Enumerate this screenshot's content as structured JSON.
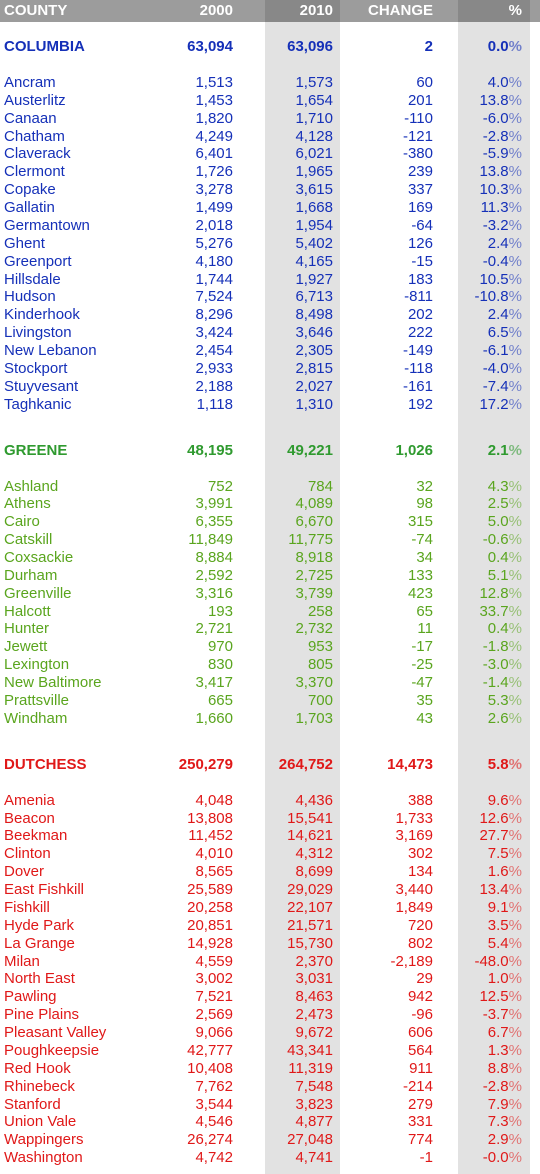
{
  "header": [
    "COUNTY",
    "2000",
    "2010",
    "CHANGE",
    "%"
  ],
  "sections": [
    {
      "color": "#1530b8",
      "total": [
        "COLUMBIA",
        "63,094",
        "63,096",
        "2",
        "0.0%"
      ],
      "rows": [
        [
          "Ancram",
          "1,513",
          "1,573",
          "60",
          "4.0%"
        ],
        [
          "Austerlitz",
          "1,453",
          "1,654",
          "201",
          "13.8%"
        ],
        [
          "Canaan",
          "1,820",
          "1,710",
          "-110",
          "-6.0%"
        ],
        [
          "Chatham",
          "4,249",
          "4,128",
          "-121",
          "-2.8%"
        ],
        [
          "Claverack",
          "6,401",
          "6,021",
          "-380",
          "-5.9%"
        ],
        [
          "Clermont",
          "1,726",
          "1,965",
          "239",
          "13.8%"
        ],
        [
          "Copake",
          "3,278",
          "3,615",
          "337",
          "10.3%"
        ],
        [
          "Gallatin",
          "1,499",
          "1,668",
          "169",
          "11.3%"
        ],
        [
          "Germantown",
          "2,018",
          "1,954",
          "-64",
          "-3.2%"
        ],
        [
          "Ghent",
          "5,276",
          "5,402",
          "126",
          "2.4%"
        ],
        [
          "Greenport",
          "4,180",
          "4,165",
          "-15",
          "-0.4%"
        ],
        [
          "Hillsdale",
          "1,744",
          "1,927",
          "183",
          "10.5%"
        ],
        [
          "Hudson",
          "7,524",
          "6,713",
          "-811",
          "-10.8%"
        ],
        [
          "Kinderhook",
          "8,296",
          "8,498",
          "202",
          "2.4%"
        ],
        [
          "Livingston",
          "3,424",
          "3,646",
          "222",
          "6.5%"
        ],
        [
          "New Lebanon",
          "2,454",
          "2,305",
          "-149",
          "-6.1%"
        ],
        [
          "Stockport",
          "2,933",
          "2,815",
          "-118",
          "-4.0%"
        ],
        [
          "Stuyvesant",
          "2,188",
          "2,027",
          "-161",
          "-7.4%"
        ],
        [
          "Taghkanic",
          "1,118",
          "1,310",
          "192",
          "17.2%"
        ]
      ]
    },
    {
      "color": "#2f9a2f",
      "row_color": "#5aa51e",
      "total": [
        "GREENE",
        "48,195",
        "49,221",
        "1,026",
        "2.1%"
      ],
      "rows": [
        [
          "Ashland",
          "752",
          "784",
          "32",
          "4.3%"
        ],
        [
          "Athens",
          "3,991",
          "4,089",
          "98",
          "2.5%"
        ],
        [
          "Cairo",
          "6,355",
          "6,670",
          "315",
          "5.0%"
        ],
        [
          "Catskill",
          "11,849",
          "11,775",
          "-74",
          "-0.6%"
        ],
        [
          "Coxsackie",
          "8,884",
          "8,918",
          "34",
          "0.4%"
        ],
        [
          "Durham",
          "2,592",
          "2,725",
          "133",
          "5.1%"
        ],
        [
          "Greenville",
          "3,316",
          "3,739",
          "423",
          "12.8%"
        ],
        [
          "Halcott",
          "193",
          "258",
          "65",
          "33.7%"
        ],
        [
          "Hunter",
          "2,721",
          "2,732",
          "11",
          "0.4%"
        ],
        [
          "Jewett",
          "970",
          "953",
          "-17",
          "-1.8%"
        ],
        [
          "Lexington",
          "830",
          "805",
          "-25",
          "-3.0%"
        ],
        [
          "New Baltimore",
          "3,417",
          "3,370",
          "-47",
          "-1.4%"
        ],
        [
          "Prattsville",
          "665",
          "700",
          "35",
          "5.3%"
        ],
        [
          "Windham",
          "1,660",
          "1,703",
          "43",
          "2.6%"
        ]
      ]
    },
    {
      "color": "#e01818",
      "total": [
        "DUTCHESS",
        "250,279",
        "264,752",
        "14,473",
        "5.8%"
      ],
      "rows": [
        [
          "Amenia",
          "4,048",
          "4,436",
          "388",
          "9.6%"
        ],
        [
          "Beacon",
          "13,808",
          "15,541",
          "1,733",
          "12.6%"
        ],
        [
          "Beekman",
          "11,452",
          "14,621",
          "3,169",
          "27.7%"
        ],
        [
          "Clinton",
          "4,010",
          "4,312",
          "302",
          "7.5%"
        ],
        [
          "Dover",
          "8,565",
          "8,699",
          "134",
          "1.6%"
        ],
        [
          "East Fishkill",
          "25,589",
          "29,029",
          "3,440",
          "13.4%"
        ],
        [
          "Fishkill",
          "20,258",
          "22,107",
          "1,849",
          "9.1%"
        ],
        [
          "Hyde Park",
          "20,851",
          "21,571",
          "720",
          "3.5%"
        ],
        [
          "La Grange",
          "14,928",
          "15,730",
          "802",
          "5.4%"
        ],
        [
          "Milan",
          "4,559",
          "2,370",
          "-2,189",
          "-48.0%"
        ],
        [
          "North East",
          "3,002",
          "3,031",
          "29",
          "1.0%"
        ],
        [
          "Pawling",
          "7,521",
          "8,463",
          "942",
          "12.5%"
        ],
        [
          "Pine Plains",
          "2,569",
          "2,473",
          "-96",
          "-3.7%"
        ],
        [
          "Pleasant Valley",
          "9,066",
          "9,672",
          "606",
          "6.7%"
        ],
        [
          "Poughkeepsie",
          "42,777",
          "43,341",
          "564",
          "1.3%"
        ],
        [
          "Red Hook",
          "10,408",
          "11,319",
          "911",
          "8.8%"
        ],
        [
          "Rhinebeck",
          "7,762",
          "7,548",
          "-214",
          "-2.8%"
        ],
        [
          "Stanford",
          "3,544",
          "3,823",
          "279",
          "7.9%"
        ],
        [
          "Union Vale",
          "4,546",
          "4,877",
          "331",
          "7.3%"
        ],
        [
          "Wappingers",
          "26,274",
          "27,048",
          "774",
          "2.9%"
        ],
        [
          "Washington",
          "4,742",
          "4,741",
          "-1",
          "-0.0%"
        ]
      ]
    }
  ]
}
